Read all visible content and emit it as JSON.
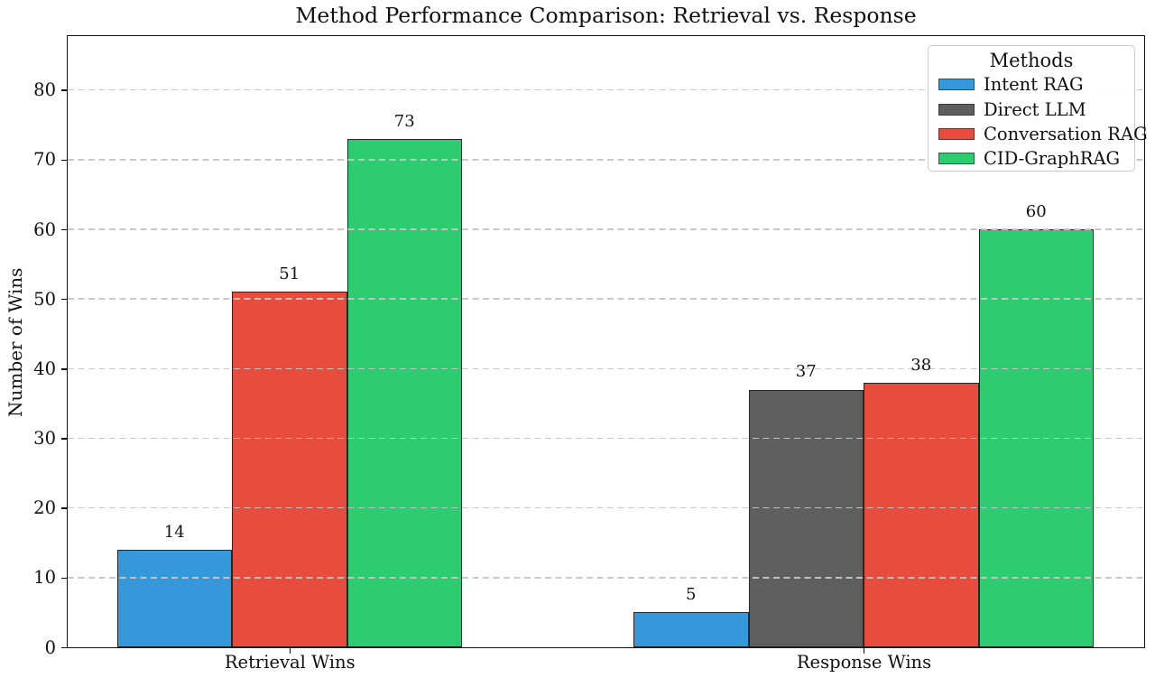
{
  "chart_data": {
    "type": "bar",
    "title": "Method Performance Comparison: Retrieval vs. Response",
    "ylabel": "Number of Wins",
    "xlabel": "",
    "categories": [
      "Retrieval Wins",
      "Response Wins"
    ],
    "series": [
      {
        "name": "Intent RAG",
        "color": "#3498db",
        "values": [
          14,
          5
        ]
      },
      {
        "name": "Direct LLM",
        "color": "#5e5e5e",
        "values": [
          null,
          37
        ]
      },
      {
        "name": "Conversation RAG",
        "color": "#e74c3c",
        "values": [
          51,
          38
        ]
      },
      {
        "name": "CID-GraphRAG",
        "color": "#2ecc71",
        "values": [
          73,
          60
        ]
      }
    ],
    "legend": {
      "title": "Methods",
      "position": "upper right"
    },
    "ylim": [
      0,
      87.8
    ],
    "yticks": [
      0,
      10,
      20,
      30,
      40,
      50,
      60,
      70,
      80
    ],
    "grid": {
      "axis": "y",
      "style": "dashed",
      "drawn_over_bars": true
    },
    "bar_value_labels": [
      14,
      51,
      73,
      5,
      37,
      38,
      60
    ],
    "colors": {
      "axis_text": "#111111",
      "bar_edge": "#262626",
      "gridline": "#c6c6c6",
      "legend_border": "#cccccc"
    }
  }
}
